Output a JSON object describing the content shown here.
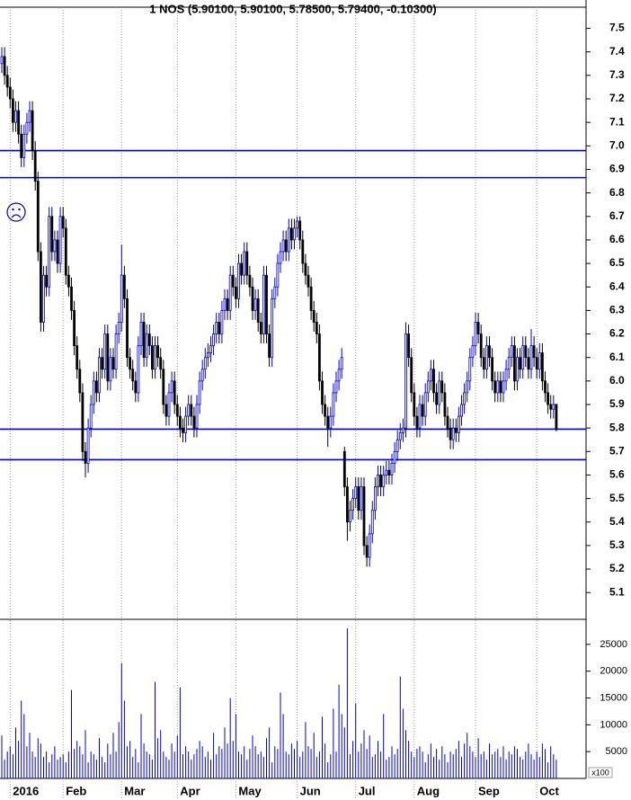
{
  "chart_data": {
    "type": "candlestick",
    "title": "1 NOS (5.90100, 5.90100, 5.78500, 5.79400, -0.10300)",
    "up_color": "#0000cc",
    "down_color": "#000000",
    "line_color": "#0000cc",
    "ylim": [
      4.99,
      7.59
    ],
    "yticks": [
      5.1,
      5.2,
      5.3,
      5.4,
      5.5,
      5.6,
      5.7,
      5.8,
      5.9,
      {
        "value": 6,
        "label": "6.0"
      },
      6.1,
      6.2,
      6.3,
      6.4,
      6.5,
      6.6,
      6.7,
      6.8,
      6.9,
      {
        "value": 7,
        "label": "7.0"
      },
      7.1,
      7.2,
      7.3,
      7.4,
      7.5
    ],
    "xticks": [
      {
        "value": 3,
        "label": "2016"
      },
      {
        "value": 22,
        "label": "Feb"
      },
      {
        "value": 43,
        "label": "Mar"
      },
      {
        "value": 63,
        "label": "Apr"
      },
      {
        "value": 84,
        "label": "May"
      },
      {
        "value": 106,
        "label": "Jun"
      },
      {
        "value": 127,
        "label": "Jul"
      },
      {
        "value": 148,
        "label": "Aug"
      },
      {
        "value": 170,
        "label": "Sep"
      },
      {
        "value": 192,
        "label": "Oct"
      }
    ],
    "grid": true,
    "hlines": [
      6.98,
      6.865,
      5.795,
      5.665
    ],
    "ohlc": [
      [
        7.35,
        7.42,
        7.31,
        7.38
      ],
      [
        7.38,
        7.42,
        7.26,
        7.3
      ],
      [
        7.3,
        7.34,
        7.21,
        7.25
      ],
      [
        7.25,
        7.29,
        7.16,
        7.2
      ],
      [
        7.2,
        7.24,
        7.06,
        7.1
      ],
      [
        7.1,
        7.19,
        7.06,
        7.15
      ],
      [
        7.15,
        7.19,
        7.01,
        7.05
      ],
      [
        7.05,
        7.09,
        6.91,
        6.95
      ],
      [
        6.95,
        7.09,
        6.91,
        7.05
      ],
      [
        7.05,
        7.14,
        7.01,
        7.1
      ],
      [
        7.1,
        7.19,
        7.06,
        7.15
      ],
      [
        7.15,
        7.19,
        6.94,
        6.98
      ],
      [
        6.98,
        7.02,
        6.81,
        6.85
      ],
      [
        6.85,
        6.89,
        6.51,
        6.55
      ],
      [
        6.55,
        6.59,
        6.21,
        6.25
      ],
      [
        6.25,
        6.49,
        6.21,
        6.45
      ],
      [
        6.45,
        6.49,
        6.36,
        6.4
      ],
      [
        6.4,
        6.74,
        6.36,
        6.7
      ],
      [
        6.7,
        6.74,
        6.51,
        6.55
      ],
      [
        6.55,
        6.64,
        6.51,
        6.6
      ],
      [
        6.6,
        6.64,
        6.46,
        6.5
      ],
      [
        6.5,
        6.74,
        6.46,
        6.7
      ],
      [
        6.7,
        6.74,
        6.61,
        6.65
      ],
      [
        6.65,
        6.69,
        6.41,
        6.45
      ],
      [
        6.45,
        6.49,
        6.36,
        6.4
      ],
      [
        6.4,
        6.44,
        6.26,
        6.3
      ],
      [
        6.3,
        6.34,
        6.11,
        6.15
      ],
      [
        6.15,
        6.19,
        6.01,
        6.05
      ],
      [
        6.05,
        6.09,
        5.91,
        5.95
      ],
      [
        5.95,
        5.99,
        5.66,
        5.7
      ],
      [
        5.7,
        5.74,
        5.59,
        5.65
      ],
      [
        5.65,
        5.84,
        5.61,
        5.8
      ],
      [
        5.8,
        5.94,
        5.76,
        5.9
      ],
      [
        5.9,
        6.04,
        5.86,
        6.0
      ],
      [
        6.0,
        6.04,
        5.91,
        5.95
      ],
      [
        5.95,
        6.14,
        5.91,
        6.1
      ],
      [
        6.1,
        6.14,
        6.01,
        6.05
      ],
      [
        6.05,
        6.24,
        6.01,
        6.2
      ],
      [
        6.2,
        6.24,
        5.96,
        6.0
      ],
      [
        6.0,
        6.14,
        5.96,
        6.1
      ],
      [
        6.1,
        6.14,
        6.01,
        6.05
      ],
      [
        6.05,
        6.24,
        6.01,
        6.2
      ],
      [
        6.2,
        6.29,
        6.16,
        6.25
      ],
      [
        6.25,
        6.58,
        6.21,
        6.45
      ],
      [
        6.45,
        6.49,
        6.31,
        6.35
      ],
      [
        6.35,
        6.39,
        6.06,
        6.1
      ],
      [
        6.1,
        6.14,
        6.01,
        6.05
      ],
      [
        6.05,
        6.09,
        5.96,
        6.0
      ],
      [
        6.0,
        6.04,
        5.91,
        5.95
      ],
      [
        5.95,
        6.19,
        5.91,
        6.15
      ],
      [
        6.15,
        6.29,
        6.11,
        6.25
      ],
      [
        6.25,
        6.29,
        6.06,
        6.1
      ],
      [
        6.1,
        6.24,
        6.06,
        6.2
      ],
      [
        6.2,
        6.24,
        6.11,
        6.15
      ],
      [
        6.15,
        6.19,
        6.01,
        6.05
      ],
      [
        6.05,
        6.19,
        6.01,
        6.15
      ],
      [
        6.15,
        6.19,
        6.06,
        6.1
      ],
      [
        6.1,
        6.14,
        6.01,
        6.05
      ],
      [
        6.05,
        6.09,
        5.86,
        5.9
      ],
      [
        5.9,
        5.94,
        5.81,
        5.85
      ],
      [
        5.85,
        5.99,
        5.81,
        5.95
      ],
      [
        5.95,
        6.04,
        5.91,
        6.0
      ],
      [
        6.0,
        6.04,
        5.86,
        5.9
      ],
      [
        5.9,
        5.94,
        5.81,
        5.85
      ],
      [
        5.85,
        5.89,
        5.76,
        5.8
      ],
      [
        5.8,
        5.84,
        5.74,
        5.78
      ],
      [
        5.78,
        5.89,
        5.74,
        5.85
      ],
      [
        5.85,
        5.94,
        5.81,
        5.9
      ],
      [
        5.9,
        5.94,
        5.81,
        5.85
      ],
      [
        5.85,
        5.89,
        5.76,
        5.8
      ],
      [
        5.8,
        5.94,
        5.76,
        5.9
      ],
      [
        5.9,
        6.04,
        5.86,
        6.0
      ],
      [
        6.0,
        6.09,
        5.96,
        6.05
      ],
      [
        6.05,
        6.14,
        6.01,
        6.1
      ],
      [
        6.1,
        6.16,
        6.06,
        6.12
      ],
      [
        6.12,
        6.19,
        6.08,
        6.15
      ],
      [
        6.15,
        6.24,
        6.11,
        6.2
      ],
      [
        6.2,
        6.29,
        6.16,
        6.25
      ],
      [
        6.25,
        6.29,
        6.16,
        6.2
      ],
      [
        6.2,
        6.34,
        6.16,
        6.3
      ],
      [
        6.3,
        6.39,
        6.26,
        6.35
      ],
      [
        6.35,
        6.39,
        6.26,
        6.3
      ],
      [
        6.3,
        6.49,
        6.26,
        6.45
      ],
      [
        6.45,
        6.49,
        6.36,
        6.4
      ],
      [
        6.4,
        6.44,
        6.31,
        6.35
      ],
      [
        6.35,
        6.54,
        6.31,
        6.5
      ],
      [
        6.5,
        6.54,
        6.41,
        6.45
      ],
      [
        6.45,
        6.59,
        6.41,
        6.55
      ],
      [
        6.55,
        6.59,
        6.41,
        6.45
      ],
      [
        6.45,
        6.49,
        6.36,
        6.4
      ],
      [
        6.4,
        6.44,
        6.26,
        6.3
      ],
      [
        6.3,
        6.39,
        6.26,
        6.35
      ],
      [
        6.35,
        6.39,
        6.21,
        6.25
      ],
      [
        6.25,
        6.29,
        6.16,
        6.2
      ],
      [
        6.2,
        6.49,
        6.16,
        6.45
      ],
      [
        6.45,
        6.49,
        6.16,
        6.2
      ],
      [
        6.2,
        6.24,
        6.06,
        6.1
      ],
      [
        6.1,
        6.39,
        6.06,
        6.35
      ],
      [
        6.35,
        6.44,
        6.31,
        6.4
      ],
      [
        6.4,
        6.54,
        6.36,
        6.5
      ],
      [
        6.5,
        6.59,
        6.46,
        6.55
      ],
      [
        6.55,
        6.64,
        6.51,
        6.6
      ],
      [
        6.6,
        6.64,
        6.51,
        6.55
      ],
      [
        6.55,
        6.69,
        6.51,
        6.65
      ],
      [
        6.65,
        6.69,
        6.56,
        6.6
      ],
      [
        6.6,
        6.69,
        6.56,
        6.65
      ],
      [
        6.65,
        6.7,
        6.61,
        6.68
      ],
      [
        6.68,
        6.7,
        6.56,
        6.6
      ],
      [
        6.6,
        6.64,
        6.46,
        6.5
      ],
      [
        6.5,
        6.54,
        6.41,
        6.45
      ],
      [
        6.45,
        6.49,
        6.36,
        6.4
      ],
      [
        6.4,
        6.44,
        6.26,
        6.3
      ],
      [
        6.3,
        6.34,
        6.21,
        6.25
      ],
      [
        6.25,
        6.29,
        6.16,
        6.2
      ],
      [
        6.2,
        6.24,
        5.96,
        6.0
      ],
      [
        6.0,
        6.04,
        5.86,
        5.9
      ],
      [
        5.9,
        5.94,
        5.81,
        5.85
      ],
      [
        5.85,
        5.89,
        5.72,
        5.8
      ],
      [
        5.8,
        5.89,
        5.76,
        5.85
      ],
      [
        5.85,
        5.99,
        5.81,
        5.95
      ],
      [
        5.95,
        6.04,
        5.91,
        6.0
      ],
      [
        6.0,
        6.09,
        5.96,
        6.05
      ],
      [
        6.05,
        6.14,
        6.01,
        6.1
      ],
      [
        5.7,
        5.72,
        5.51,
        5.55
      ],
      [
        5.55,
        5.59,
        5.32,
        5.4
      ],
      [
        5.4,
        5.49,
        5.36,
        5.45
      ],
      [
        5.45,
        5.54,
        5.41,
        5.5
      ],
      [
        5.5,
        5.59,
        5.46,
        5.55
      ],
      [
        5.55,
        5.59,
        5.41,
        5.45
      ],
      [
        5.45,
        5.59,
        5.41,
        5.55
      ],
      [
        5.55,
        5.59,
        5.26,
        5.3
      ],
      [
        5.3,
        5.34,
        5.21,
        5.25
      ],
      [
        5.25,
        5.39,
        5.21,
        5.35
      ],
      [
        5.35,
        5.49,
        5.31,
        5.45
      ],
      [
        5.45,
        5.59,
        5.41,
        5.55
      ],
      [
        5.55,
        5.64,
        5.51,
        5.6
      ],
      [
        5.6,
        5.64,
        5.51,
        5.55
      ],
      [
        5.55,
        5.64,
        5.51,
        5.6
      ],
      [
        5.6,
        5.66,
        5.56,
        5.62
      ],
      [
        5.62,
        5.66,
        5.56,
        5.6
      ],
      [
        5.6,
        5.69,
        5.56,
        5.65
      ],
      [
        5.65,
        5.74,
        5.61,
        5.7
      ],
      [
        5.7,
        5.79,
        5.66,
        5.75
      ],
      [
        5.75,
        5.82,
        5.71,
        5.78
      ],
      [
        5.78,
        5.84,
        5.74,
        5.8
      ],
      [
        5.8,
        6.25,
        5.76,
        6.2
      ],
      [
        6.2,
        6.24,
        6.06,
        6.1
      ],
      [
        6.1,
        6.14,
        5.91,
        5.95
      ],
      [
        5.95,
        5.99,
        5.81,
        5.85
      ],
      [
        5.85,
        5.89,
        5.76,
        5.8
      ],
      [
        5.8,
        5.94,
        5.76,
        5.9
      ],
      [
        5.9,
        5.94,
        5.81,
        5.85
      ],
      [
        5.85,
        5.99,
        5.81,
        5.95
      ],
      [
        5.95,
        6.04,
        5.91,
        6.0
      ],
      [
        6.0,
        6.09,
        5.96,
        6.05
      ],
      [
        6.05,
        6.09,
        5.91,
        5.95
      ],
      [
        5.95,
        5.99,
        5.86,
        5.9
      ],
      [
        5.9,
        6.04,
        5.86,
        6.0
      ],
      [
        6.0,
        6.04,
        5.91,
        5.95
      ],
      [
        5.95,
        5.99,
        5.81,
        5.85
      ],
      [
        5.85,
        5.89,
        5.76,
        5.8
      ],
      [
        5.8,
        5.84,
        5.71,
        5.75
      ],
      [
        5.75,
        5.84,
        5.71,
        5.8
      ],
      [
        5.8,
        5.84,
        5.74,
        5.78
      ],
      [
        5.78,
        5.89,
        5.74,
        5.85
      ],
      [
        5.85,
        5.94,
        5.81,
        5.9
      ],
      [
        5.9,
        5.99,
        5.86,
        5.95
      ],
      [
        5.95,
        6.04,
        5.91,
        6.0
      ],
      [
        6.0,
        6.14,
        5.96,
        6.1
      ],
      [
        6.1,
        6.19,
        6.06,
        6.15
      ],
      [
        6.15,
        6.29,
        6.11,
        6.25
      ],
      [
        6.25,
        6.29,
        6.16,
        6.2
      ],
      [
        6.2,
        6.24,
        6.06,
        6.1
      ],
      [
        6.1,
        6.14,
        6.01,
        6.05
      ],
      [
        6.05,
        6.19,
        6.01,
        6.15
      ],
      [
        6.15,
        6.19,
        6.06,
        6.1
      ],
      [
        6.1,
        6.14,
        5.96,
        6.0
      ],
      [
        6.0,
        6.04,
        5.91,
        5.95
      ],
      [
        5.95,
        6.04,
        5.91,
        6.0
      ],
      [
        6.0,
        6.04,
        5.91,
        5.95
      ],
      [
        5.95,
        6.04,
        5.91,
        6.0
      ],
      [
        6.0,
        6.09,
        5.96,
        6.05
      ],
      [
        6.05,
        6.14,
        6.01,
        6.1
      ],
      [
        6.1,
        6.19,
        6.06,
        6.15
      ],
      [
        6.15,
        6.19,
        5.96,
        6.0
      ],
      [
        6.0,
        6.14,
        5.96,
        6.1
      ],
      [
        6.1,
        6.14,
        6.01,
        6.05
      ],
      [
        6.05,
        6.19,
        6.01,
        6.15
      ],
      [
        6.15,
        6.19,
        6.06,
        6.1
      ],
      [
        6.1,
        6.14,
        6.01,
        6.05
      ],
      [
        6.05,
        6.22,
        6.01,
        6.15
      ],
      [
        6.15,
        6.19,
        6.06,
        6.1
      ],
      [
        6.1,
        6.14,
        6.01,
        6.05
      ],
      [
        6.05,
        6.16,
        6.01,
        6.12
      ],
      [
        6.12,
        6.16,
        5.96,
        6.0
      ],
      [
        6.0,
        6.04,
        5.91,
        5.95
      ],
      [
        5.95,
        5.99,
        5.86,
        5.9
      ],
      [
        5.9,
        5.94,
        5.84,
        5.88
      ],
      [
        5.88,
        5.94,
        5.84,
        5.9
      ],
      [
        5.901,
        5.901,
        5.785,
        5.794
      ]
    ],
    "volume": {
      "color": "#0000cc",
      "unit_label": "x100",
      "ylim": [
        0,
        29000
      ],
      "yticks": [
        5000,
        10000,
        15000,
        20000,
        25000
      ],
      "values": [
        8000,
        3500,
        5000,
        6000,
        4500,
        9500,
        7000,
        14500,
        12000,
        6000,
        8500,
        5000,
        4000,
        7500,
        6500,
        4000,
        5000,
        3000,
        4500,
        6000,
        3500,
        4000,
        4500,
        3000,
        5000,
        16500,
        5500,
        7000,
        6000,
        4500,
        9000,
        3000,
        5000,
        4500,
        3500,
        7500,
        4000,
        3000,
        6500,
        4500,
        8500,
        5000,
        10500,
        21500,
        14500,
        6000,
        7000,
        4000,
        5500,
        3000,
        12000,
        6500,
        5000,
        4500,
        3500,
        18000,
        7500,
        9000,
        5000,
        4000,
        3500,
        6500,
        5000,
        8000,
        17000,
        4500,
        6000,
        5000,
        3500,
        4500,
        5500,
        7000,
        6000,
        4000,
        5000,
        3500,
        8500,
        4500,
        6000,
        5500,
        9500,
        6500,
        15000,
        7000,
        12000,
        5000,
        4500,
        6000,
        3500,
        5500,
        8000,
        6000,
        4500,
        5000,
        4000,
        7500,
        9500,
        3000,
        6000,
        5500,
        16000,
        12000,
        5000,
        4500,
        6500,
        5500,
        7000,
        4000,
        5000,
        10500,
        6000,
        5500,
        8500,
        4000,
        5000,
        11500,
        6500,
        3000,
        4500,
        13000,
        5000,
        17500,
        12000,
        9500,
        28000,
        4500,
        7000,
        14000,
        5000,
        6500,
        9000,
        5500,
        8000,
        4000,
        4500,
        7000,
        5000,
        12000,
        3500,
        4000,
        6000,
        4500,
        5500,
        19000,
        13000,
        9000,
        7000,
        5000,
        4000,
        5500,
        6000,
        5000,
        3000,
        4500,
        6500,
        4000,
        5500,
        3500,
        6000,
        4500,
        3000,
        5000,
        4500,
        5500,
        7000,
        4000,
        6500,
        8500,
        6000,
        5000,
        4000,
        7500,
        4500,
        5000,
        3500,
        6500,
        4500,
        5000,
        5500,
        4000,
        6000,
        3500,
        5000,
        4500,
        6000,
        5500,
        4000,
        3500,
        5000,
        6500,
        4500,
        3500,
        5000,
        4000,
        6500,
        5500,
        3000,
        6000,
        4500,
        3500
      ]
    }
  }
}
